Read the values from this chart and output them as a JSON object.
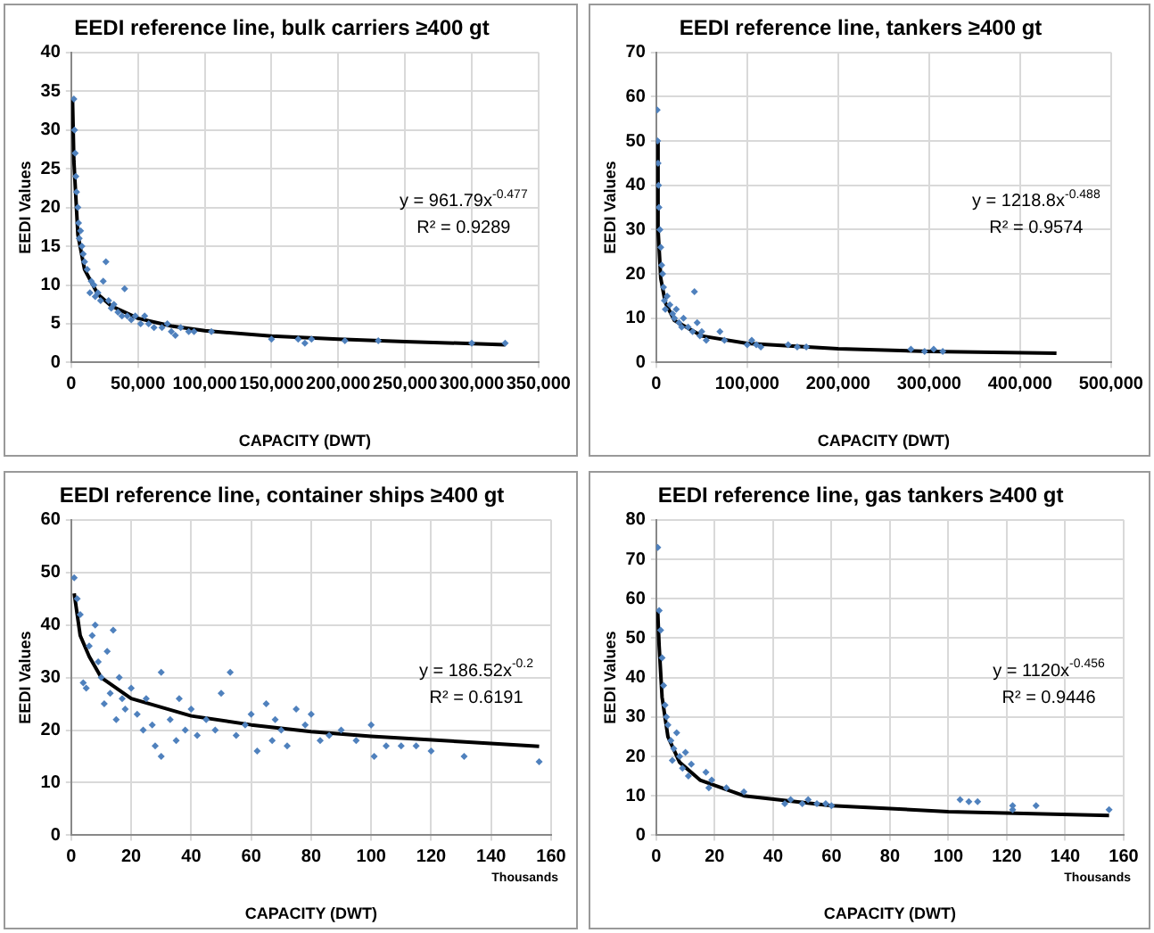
{
  "chart_data": [
    {
      "type": "scatter",
      "title": "EEDI reference line, bulk carriers ≥400 gt",
      "xlabel": "CAPACITY (DWT)",
      "ylabel": "EEDI Values",
      "grid": true,
      "legend": false,
      "xlim": [
        0,
        350000
      ],
      "xticks": [
        0,
        {
          "value": 50000,
          "label": "50,000"
        },
        {
          "value": 100000,
          "label": "100,000"
        },
        {
          "value": 150000,
          "label": "150,000"
        },
        {
          "value": 200000,
          "label": "200,000"
        },
        {
          "value": 250000,
          "label": "250,000"
        },
        {
          "value": 300000,
          "label": "300,000"
        },
        {
          "value": 350000,
          "label": "350,000"
        }
      ],
      "ylim": [
        0,
        40
      ],
      "yticks": [
        0,
        5,
        10,
        15,
        20,
        25,
        30,
        35,
        40
      ],
      "annotations": [
        "y = 961.79x$^{-0.477}$",
        "R² = 0.9289"
      ],
      "series": [
        {
          "type": "scatter",
          "marker": "diamond",
          "color": "#4f81bd",
          "x": [
            2000,
            2500,
            3000,
            3500,
            4000,
            5000,
            5500,
            6000,
            7000,
            8000,
            9000,
            10000,
            12000,
            14000,
            15000,
            17000,
            18000,
            20000,
            22000,
            24000,
            26000,
            28000,
            30000,
            32000,
            35000,
            38000,
            40000,
            42000,
            45000,
            48000,
            52000,
            55000,
            58000,
            62000,
            68000,
            72000,
            75000,
            78000,
            82000,
            88000,
            92000,
            105000,
            150000,
            170000,
            175000,
            180000,
            205000,
            230000,
            300000,
            325000
          ],
          "values": [
            34,
            30,
            27,
            24,
            22,
            20,
            18,
            16,
            17,
            15,
            14,
            13,
            12,
            9,
            10.5,
            10,
            8.5,
            9,
            8,
            10.5,
            13,
            8,
            7,
            7.5,
            6.5,
            6,
            9.5,
            6,
            5.5,
            6,
            5,
            6,
            5,
            4.5,
            4.5,
            5,
            4,
            3.5,
            4.5,
            4,
            4,
            4,
            3,
            3,
            2.5,
            3,
            2.8,
            2.8,
            2.5,
            2.5
          ]
        },
        {
          "type": "line",
          "marker": "none",
          "color": "#000000",
          "x": [
            1000,
            2000,
            5000,
            10000,
            20000,
            30000,
            50000,
            75000,
            100000,
            150000,
            200000,
            250000,
            325000
          ],
          "values": [
            34,
            26,
            16.5,
            12,
            8.8,
            7.3,
            5.7,
            4.7,
            4.1,
            3.4,
            3,
            2.7,
            2.3
          ]
        }
      ]
    },
    {
      "type": "scatter",
      "title": "EEDI reference line, tankers ≥400 gt",
      "xlabel": "CAPACITY (DWT)",
      "ylabel": "EEDI Values",
      "grid": true,
      "legend": false,
      "xlim": [
        0,
        500000
      ],
      "xticks": [
        0,
        {
          "value": 100000,
          "label": "100,000"
        },
        {
          "value": 200000,
          "label": "200,000"
        },
        {
          "value": 300000,
          "label": "300,000"
        },
        {
          "value": 400000,
          "label": "400,000"
        },
        {
          "value": 500000,
          "label": "500,000"
        }
      ],
      "ylim": [
        0,
        70
      ],
      "yticks": [
        0,
        10,
        20,
        30,
        40,
        50,
        60,
        70
      ],
      "annotations": [
        "y = 1218.8x$^{-0.488}$",
        "R² = 0.9574"
      ],
      "series": [
        {
          "type": "scatter",
          "marker": "diamond",
          "color": "#4f81bd",
          "x": [
            1000,
            1500,
            2000,
            2500,
            3000,
            4000,
            5000,
            6000,
            7000,
            8000,
            9000,
            10000,
            12000,
            15000,
            18000,
            20000,
            22000,
            25000,
            28000,
            30000,
            35000,
            40000,
            42000,
            45000,
            48000,
            50000,
            55000,
            70000,
            75000,
            100000,
            105000,
            110000,
            115000,
            145000,
            155000,
            165000,
            280000,
            295000,
            305000,
            315000
          ],
          "values": [
            57,
            50,
            45,
            40,
            35,
            30,
            26,
            22,
            20,
            17,
            14,
            12,
            15,
            13,
            11,
            10,
            12,
            9,
            8,
            10,
            8,
            7,
            16,
            9,
            6,
            7,
            5,
            7,
            5,
            4,
            5,
            4,
            3.5,
            4,
            3.5,
            3.5,
            3,
            2.5,
            3,
            2.5
          ]
        },
        {
          "type": "line",
          "marker": "none",
          "color": "#000000",
          "x": [
            500,
            2000,
            5000,
            10000,
            20000,
            50000,
            100000,
            200000,
            300000,
            440000
          ],
          "values": [
            50,
            30,
            19,
            13.5,
            9.5,
            6,
            4.3,
            3.1,
            2.5,
            2.1
          ]
        }
      ]
    },
    {
      "type": "scatter",
      "title": "EEDI reference line, container ships ≥400 gt",
      "xlabel": "CAPACITY (DWT)",
      "ylabel": "EEDI Values",
      "grid": true,
      "legend": false,
      "xlim": [
        0,
        160
      ],
      "xticks": [
        0,
        20,
        40,
        60,
        80,
        100,
        120,
        140,
        160
      ],
      "ylim": [
        0,
        60
      ],
      "yticks": [
        0,
        10,
        20,
        30,
        40,
        50,
        60
      ],
      "annotations": [
        "y = 186.52x$^{-0.2}$",
        "R² = 0.6191",
        "Thousands"
      ],
      "series": [
        {
          "type": "scatter",
          "marker": "diamond",
          "color": "#4f81bd",
          "x": [
            1,
            2,
            3,
            4,
            5,
            6,
            7,
            8,
            9,
            10,
            11,
            12,
            13,
            14,
            15,
            16,
            17,
            18,
            20,
            22,
            24,
            25,
            27,
            28,
            30,
            30,
            33,
            35,
            36,
            38,
            40,
            42,
            45,
            48,
            50,
            53,
            55,
            58,
            60,
            62,
            65,
            67,
            68,
            70,
            72,
            75,
            78,
            80,
            83,
            86,
            90,
            95,
            100,
            101,
            105,
            110,
            115,
            120,
            131,
            156
          ],
          "values": [
            49,
            45,
            42,
            29,
            28,
            36,
            38,
            40,
            33,
            30,
            25,
            35,
            27,
            39,
            22,
            30,
            26,
            24,
            28,
            23,
            20,
            26,
            21,
            17,
            31,
            15,
            22,
            18,
            26,
            20,
            24,
            19,
            22,
            20,
            27,
            31,
            19,
            21,
            23,
            16,
            25,
            18,
            22,
            20,
            17,
            24,
            21,
            23,
            18,
            19,
            20,
            18,
            21,
            15,
            17,
            17,
            17,
            16,
            15,
            14
          ]
        },
        {
          "type": "line",
          "marker": "none",
          "color": "#000000",
          "x": [
            1,
            3,
            6,
            10,
            20,
            40,
            60,
            80,
            100,
            130,
            156
          ],
          "values": [
            46,
            38,
            34,
            30,
            26,
            22.7,
            21,
            19.7,
            18.8,
            17.8,
            16.9
          ]
        }
      ]
    },
    {
      "type": "scatter",
      "title": "EEDI reference line, gas tankers ≥400 gt",
      "xlabel": "CAPACITY (DWT)",
      "ylabel": "EEDI Values",
      "grid": true,
      "legend": false,
      "xlim": [
        0,
        160
      ],
      "xticks": [
        0,
        20,
        40,
        60,
        80,
        100,
        120,
        140,
        160
      ],
      "ylim": [
        0,
        80
      ],
      "yticks": [
        0,
        10,
        20,
        30,
        40,
        50,
        60,
        70,
        80
      ],
      "annotations": [
        "y = 1120x$^{-0.456}$",
        "R² = 0.9446",
        "Thousands"
      ],
      "series": [
        {
          "type": "scatter",
          "marker": "diamond",
          "color": "#4f81bd",
          "x": [
            0.5,
            1,
            1.5,
            2,
            2.5,
            3,
            3.5,
            4,
            5,
            5.5,
            6,
            7,
            8,
            9,
            10,
            11,
            12,
            17,
            18,
            19,
            24,
            30,
            44,
            46,
            50,
            52,
            55,
            58,
            60,
            104,
            107,
            110,
            122,
            122,
            130,
            155
          ],
          "values": [
            73,
            57,
            52,
            45,
            38,
            33,
            30,
            28,
            24,
            19,
            22,
            26,
            20,
            17,
            21,
            15,
            18,
            16,
            12,
            14,
            12,
            11,
            8,
            9,
            8,
            9,
            8,
            8,
            7.5,
            9,
            8.5,
            8.5,
            7.5,
            6.5,
            7.5,
            6.5
          ]
        },
        {
          "type": "line",
          "marker": "none",
          "color": "#000000",
          "x": [
            0.5,
            1,
            2,
            4,
            8,
            15,
            30,
            60,
            100,
            155
          ],
          "values": [
            57,
            48,
            35,
            25,
            18.5,
            14,
            10,
            7.5,
            6,
            5
          ]
        }
      ]
    }
  ]
}
